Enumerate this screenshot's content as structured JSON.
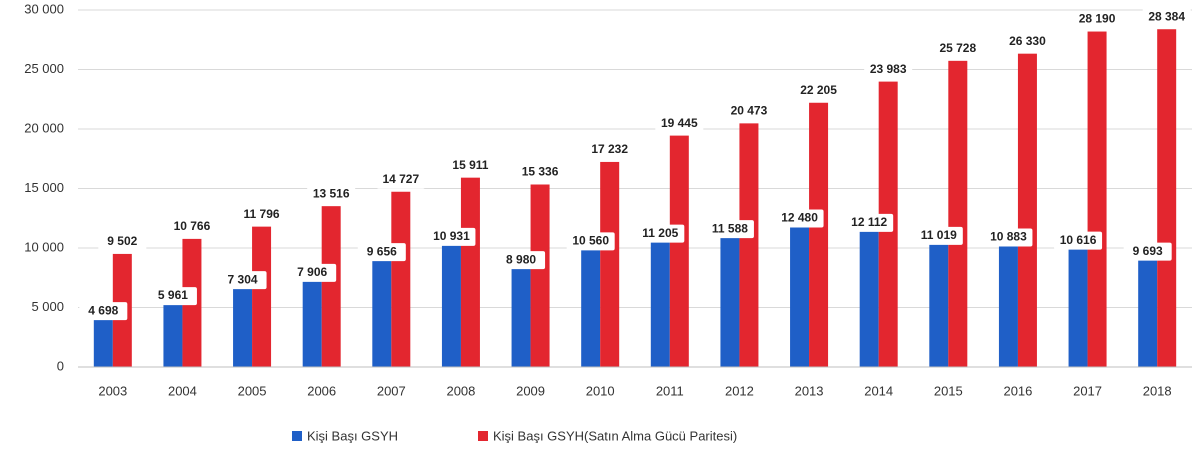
{
  "chart_data": {
    "type": "bar",
    "categories": [
      "2003",
      "2004",
      "2005",
      "2006",
      "2007",
      "2008",
      "2009",
      "2010",
      "2011",
      "2012",
      "2013",
      "2014",
      "2015",
      "2016",
      "2017",
      "2018"
    ],
    "series": [
      {
        "name": "Kişi Başı GSYH",
        "color": "#1f5fc7",
        "values": [
          4698,
          5961,
          7304,
          7906,
          9656,
          10931,
          8980,
          10560,
          11205,
          11588,
          12480,
          12112,
          11019,
          10883,
          10616,
          9693
        ],
        "value_labels": [
          "4 698",
          "5 961",
          "7 304",
          "7 906",
          "9 656",
          "10 931",
          "8 980",
          "10 560",
          "11 205",
          "11 588",
          "12 480",
          "12 112",
          "11 019",
          "10 883",
          "10 616",
          "9 693"
        ]
      },
      {
        "name": "Kişi Başı GSYH(Satın Alma Gücü Paritesi)",
        "color": "#e3262f",
        "values": [
          9502,
          10766,
          11796,
          13516,
          14727,
          15911,
          15336,
          17232,
          19445,
          20473,
          22205,
          23983,
          25728,
          26330,
          28190,
          28384
        ],
        "value_labels": [
          "9 502",
          "10 766",
          "11 796",
          "13 516",
          "14 727",
          "15 911",
          "15 336",
          "17 232",
          "19 445",
          "20 473",
          "22 205",
          "23 983",
          "25 728",
          "26 330",
          "28 190",
          "28 384"
        ]
      }
    ],
    "ylim": [
      0,
      30000
    ],
    "yticks": [
      0,
      {
        "value": 5000,
        "label": "5 000"
      },
      {
        "value": 10000,
        "label": "10 000"
      },
      {
        "value": 15000,
        "label": "15 000"
      },
      {
        "value": 20000,
        "label": "20 000"
      },
      {
        "value": 25000,
        "label": "25 000"
      },
      {
        "value": 30000,
        "label": "30 000"
      }
    ],
    "grid": true
  }
}
